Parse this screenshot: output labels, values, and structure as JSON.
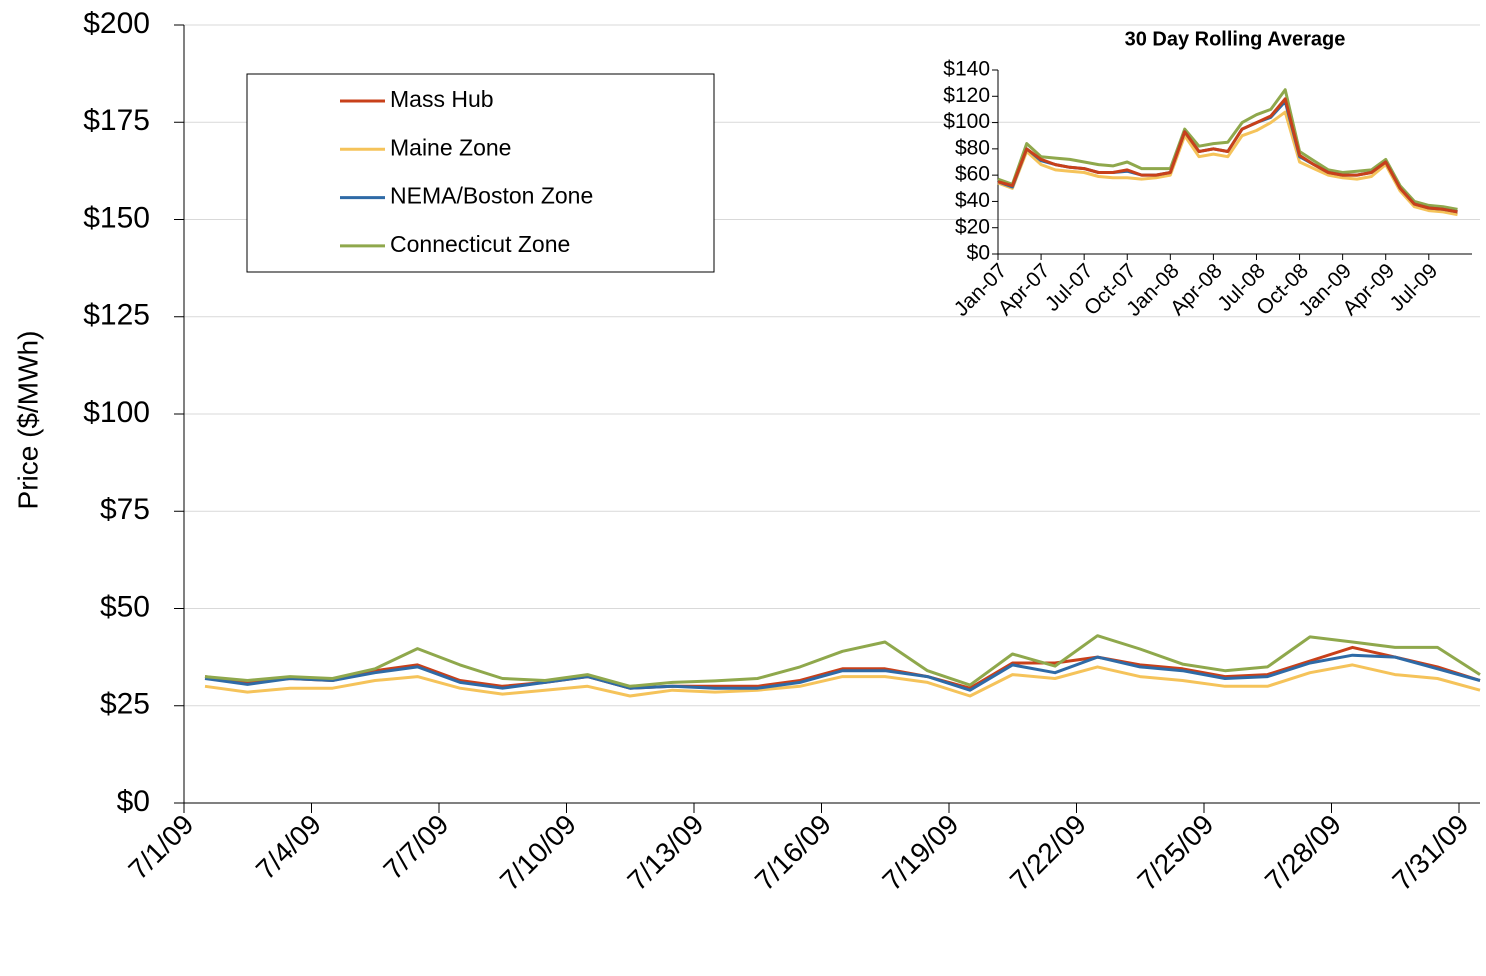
{
  "chart_data": [
    {
      "type": "line",
      "y_label": "Price ($/MWh)",
      "categories": [
        "7/1/09",
        null,
        null,
        "7/4/09",
        null,
        null,
        "7/7/09",
        null,
        null,
        "7/10/09",
        null,
        null,
        "7/13/09",
        null,
        null,
        "7/16/09",
        null,
        null,
        "7/19/09",
        null,
        null,
        "7/22/09",
        null,
        null,
        "7/25/09",
        null,
        null,
        "7/28/09",
        null,
        null,
        "7/31/09"
      ],
      "ylim": [
        0,
        200
      ],
      "yticks": [
        {
          "value": 0,
          "label": "$0"
        },
        {
          "value": 25,
          "label": "$25"
        },
        {
          "value": 50,
          "label": "$50"
        },
        {
          "value": 75,
          "label": "$75"
        },
        {
          "value": 100,
          "label": "$100"
        },
        {
          "value": 125,
          "label": "$125"
        },
        {
          "value": 150,
          "label": "$150"
        },
        {
          "value": 175,
          "label": "$175"
        },
        {
          "value": 200,
          "label": "$200"
        }
      ],
      "grid": true,
      "legend": "upper-left",
      "series": [
        {
          "name": "Mass Hub",
          "color": "#c8401a",
          "values": [
            32.5,
            31,
            32,
            31.5,
            34,
            35.5,
            31.5,
            30,
            31,
            32.5,
            29.5,
            30,
            30,
            30,
            31.5,
            34.5,
            34.5,
            32.5,
            29.5,
            36,
            36,
            37.5,
            35.5,
            34.5,
            32.5,
            33,
            36.5,
            40,
            37.5,
            35,
            31.5
          ]
        },
        {
          "name": "Maine Zone",
          "color": "#f5c35a",
          "values": [
            30,
            28.5,
            29.5,
            29.5,
            31.5,
            32.5,
            29.5,
            28,
            29,
            30,
            27.5,
            29,
            28.5,
            29,
            30,
            32.5,
            32.5,
            31,
            27.5,
            33,
            32,
            35,
            32.5,
            31.5,
            30,
            30,
            33.5,
            35.5,
            33,
            32,
            29
          ]
        },
        {
          "name": "NEMA/Boston Zone",
          "color": "#2e6aa6",
          "values": [
            32,
            30.5,
            32,
            31.5,
            33.5,
            35,
            31,
            29.5,
            31,
            32.5,
            29.5,
            30,
            29.5,
            29.5,
            31,
            34,
            34,
            32.5,
            29,
            35.5,
            33.5,
            37.5,
            35,
            34,
            32,
            32.5,
            36,
            38,
            37.5,
            34.5,
            31.5
          ]
        },
        {
          "name": "Connecticut Zone",
          "color": "#8fa84c",
          "values": [
            32.5,
            31.5,
            32.5,
            32,
            34.5,
            39.7,
            35.5,
            32,
            31.5,
            33,
            30,
            31,
            31.4,
            32,
            35,
            39,
            41.4,
            34,
            30.3,
            38.3,
            35.2,
            43,
            39.6,
            35.7,
            34,
            35,
            42.7,
            41.4,
            40,
            40,
            33
          ]
        }
      ]
    },
    {
      "type": "line",
      "title": "30 Day Rolling Average",
      "categories": [
        "Jan-07",
        null,
        null,
        "Apr-07",
        null,
        null,
        "Jul-07",
        null,
        null,
        "Oct-07",
        null,
        null,
        "Jan-08",
        null,
        null,
        "Apr-08",
        null,
        null,
        "Jul-08",
        null,
        null,
        "Oct-08",
        null,
        null,
        "Jan-09",
        null,
        null,
        "Apr-09",
        null,
        null,
        "Jul-09",
        null,
        null
      ],
      "ylim": [
        0,
        140
      ],
      "yticks": [
        {
          "value": 0,
          "label": "$0"
        },
        {
          "value": 20,
          "label": "$20"
        },
        {
          "value": 40,
          "label": "$40"
        },
        {
          "value": 60,
          "label": "$60"
        },
        {
          "value": 80,
          "label": "$80"
        },
        {
          "value": 100,
          "label": "$100"
        },
        {
          "value": 120,
          "label": "$120"
        },
        {
          "value": 140,
          "label": "$140"
        }
      ],
      "grid": false,
      "series": [
        {
          "color": "#8fa84c",
          "values": [
            57,
            53,
            84,
            74,
            73,
            72,
            70,
            68,
            67,
            70,
            65,
            65,
            65,
            95,
            82,
            84,
            85,
            100,
            106,
            110,
            125,
            78,
            71,
            64,
            62,
            63,
            64,
            72,
            52,
            40,
            37,
            36,
            34
          ]
        },
        {
          "color": "#f5c35a",
          "values": [
            54,
            50,
            78,
            68,
            64,
            63,
            62,
            59,
            58,
            58,
            57,
            58,
            60,
            90,
            74,
            76,
            74,
            90,
            94,
            100,
            108,
            70,
            65,
            60,
            58,
            57,
            59,
            68,
            48,
            36,
            33,
            32,
            30
          ]
        },
        {
          "color": "#2e6aa6",
          "values": [
            55,
            51,
            80,
            71,
            68,
            66,
            65,
            62,
            62,
            63,
            60,
            60,
            62,
            93,
            78,
            80,
            78,
            95,
            100,
            104,
            116,
            74,
            68,
            62,
            60,
            60,
            62,
            70,
            50,
            38,
            35,
            34,
            32
          ]
        },
        {
          "color": "#c8401a",
          "values": [
            55,
            52,
            80,
            72,
            68,
            66,
            65,
            62,
            62,
            64,
            60,
            60,
            62,
            93,
            78,
            80,
            78,
            95,
            100,
            105,
            118,
            75,
            68,
            62,
            60,
            60,
            62,
            70,
            50,
            38,
            35,
            34,
            32
          ]
        }
      ]
    }
  ]
}
